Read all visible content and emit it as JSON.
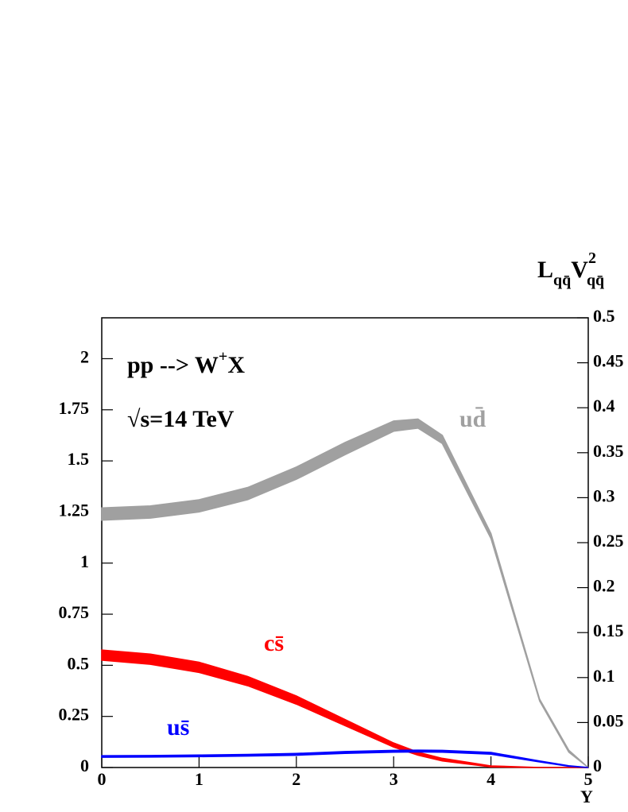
{
  "chart_data": {
    "type": "band",
    "annotations": [
      {
        "text": "pp --> W",
        "sup": "+",
        "after": "X"
      },
      {
        "text": "√s=14 TeV"
      }
    ],
    "xlabel": "Y",
    "y2label": [
      "L",
      "qq̄",
      "V",
      "2",
      "qq̄"
    ],
    "x": [
      0,
      0.5,
      1,
      1.5,
      2,
      2.5,
      3,
      3.25,
      3.5,
      4,
      4.5,
      4.8,
      5
    ],
    "series": [
      {
        "name": "ud̄",
        "color": "#a0a0a0",
        "lower": [
          1.21,
          1.22,
          1.25,
          1.31,
          1.41,
          1.53,
          1.645,
          1.66,
          1.585,
          1.12,
          0.325,
          0.075,
          0
        ],
        "upper": [
          1.27,
          1.28,
          1.31,
          1.37,
          1.47,
          1.59,
          1.695,
          1.705,
          1.625,
          1.145,
          0.335,
          0.085,
          0
        ]
      },
      {
        "name": "cs̄",
        "color": "#ff0000",
        "lower": [
          0.525,
          0.505,
          0.465,
          0.4,
          0.31,
          0.205,
          0.1,
          0.06,
          0.032,
          0.003,
          0,
          0,
          0
        ],
        "upper": [
          0.575,
          0.555,
          0.515,
          0.445,
          0.35,
          0.235,
          0.12,
          0.075,
          0.045,
          0.008,
          0,
          0,
          0
        ]
      },
      {
        "name": "us̄",
        "color": "#0000ff",
        "lower": [
          0.05,
          0.051,
          0.053,
          0.056,
          0.06,
          0.069,
          0.075,
          0.076,
          0.075,
          0.065,
          0.027,
          0.006,
          0
        ],
        "upper": [
          0.058,
          0.059,
          0.061,
          0.064,
          0.069,
          0.078,
          0.084,
          0.085,
          0.084,
          0.074,
          0.032,
          0.009,
          0
        ]
      }
    ],
    "xlim": [
      0,
      5
    ],
    "xticks": [
      0,
      1,
      2,
      3,
      4,
      5
    ],
    "ylim": [
      0,
      2.2
    ],
    "yticks": [
      0,
      0.25,
      0.5,
      0.75,
      1,
      1.25,
      1.5,
      1.75,
      2
    ],
    "y2lim": [
      0,
      0.5
    ],
    "y2ticks": [
      0,
      0.05,
      0.1,
      0.15,
      0.2,
      0.25,
      0.3,
      0.35,
      0.4,
      0.45,
      0.5
    ]
  }
}
